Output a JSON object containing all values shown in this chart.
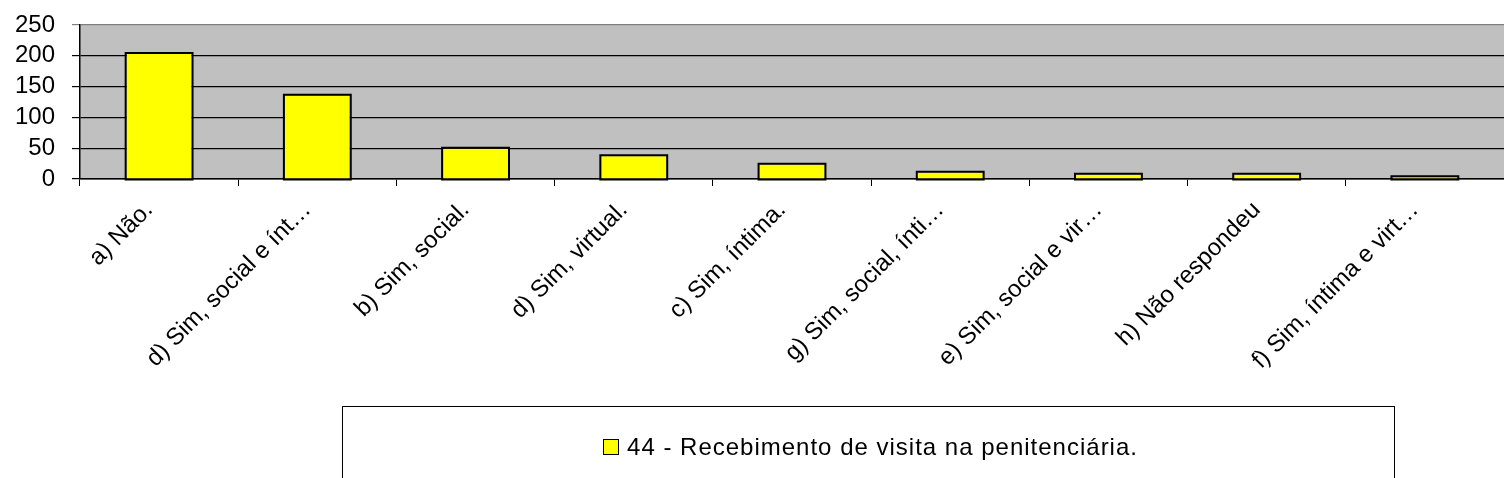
{
  "chart_data": {
    "type": "bar",
    "categories": [
      "a) Não.",
      "d) Sim, social e ínt…",
      "b) Sim, social.",
      "d) Sim, virtual.",
      "c) Sim, íntima.",
      "g) Sim, social, ínti…",
      "e) Sim, social e vir…",
      "h) Não respondeu",
      "f) Sim, íntima e virt…"
    ],
    "series": [
      {
        "name": "44 - Recebimento de visita na penitenciária.",
        "color": "#ffff00",
        "values": [
          203,
          135,
          49,
          37,
          23,
          10,
          7,
          7,
          3
        ]
      }
    ],
    "ylim": [
      0,
      250
    ],
    "yticks": [
      0,
      50,
      100,
      150,
      200,
      250
    ],
    "grid": "y",
    "legend": "bottom"
  }
}
